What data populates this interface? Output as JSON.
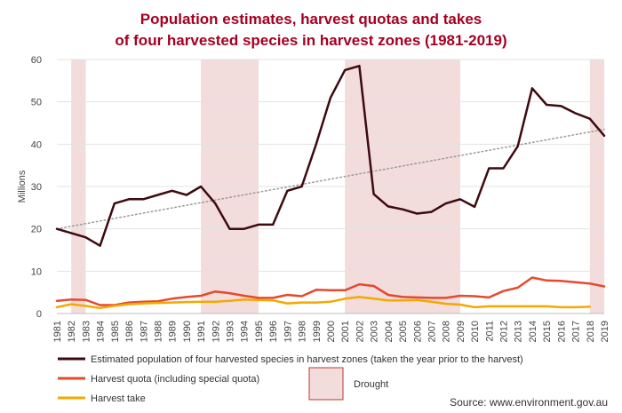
{
  "chart_data": {
    "type": "line",
    "title_line1": "Population estimates, harvest quotas and takes",
    "title_line2": "of four harvested species in harvest zones (1981-2019)",
    "ylabel": "Millions",
    "ylim": [
      0,
      60
    ],
    "yticks": [
      0,
      10,
      20,
      30,
      40,
      50,
      60
    ],
    "x": [
      1981,
      1982,
      1983,
      1984,
      1985,
      1986,
      1987,
      1988,
      1989,
      1990,
      1991,
      1992,
      1993,
      1994,
      1995,
      1996,
      1997,
      1998,
      1999,
      2000,
      2001,
      2002,
      2003,
      2004,
      2005,
      2006,
      2007,
      2008,
      2009,
      2010,
      2011,
      2012,
      2013,
      2014,
      2015,
      2016,
      2017,
      2018,
      2019
    ],
    "x_labels": [
      "1981",
      "1982",
      "1983",
      "1984",
      "1985",
      "1986",
      "1987",
      "1988",
      "1989",
      "1990",
      "1991",
      "1992",
      "1993",
      "1994",
      "1995",
      "1996",
      "1997",
      "1998",
      "1999",
      "2000",
      "2001",
      "2002",
      "2003",
      "2004",
      "2005",
      "2006",
      "2007",
      "2008",
      "2009",
      "2010",
      "2011",
      "2012",
      "2013",
      "2014",
      "2015",
      "2016",
      "2017",
      "2018",
      "2019"
    ],
    "series": [
      {
        "name": "Estimated population of four harvested species in harvest zones (taken the year prior to the harvest)",
        "color": "#3d0a0f",
        "values": [
          20,
          19,
          18,
          16,
          26,
          27,
          27,
          28,
          29,
          28,
          30,
          26,
          20,
          20,
          21,
          21,
          29,
          30,
          40,
          51,
          57.5,
          58.5,
          28.2,
          25.3,
          24.6,
          23.6,
          24,
          26,
          27,
          25.2,
          34.3,
          34.3,
          39.5,
          53.2,
          49.3,
          49,
          47.3,
          46,
          42
        ]
      },
      {
        "name": "Harvest quota (including special quota)",
        "color": "#e6492d",
        "values": [
          3,
          3.3,
          3.2,
          2,
          2,
          2.6,
          2.8,
          2.9,
          3.5,
          3.9,
          4.2,
          5.2,
          4.8,
          4.2,
          3.7,
          3.7,
          4.4,
          4.1,
          5.6,
          5.5,
          5.5,
          6.9,
          6.5,
          4.4,
          3.9,
          3.8,
          3.7,
          3.7,
          4.2,
          4.1,
          3.8,
          5.3,
          6.1,
          8.5,
          7.8,
          7.7,
          7.4,
          7.1,
          6.4
        ]
      },
      {
        "name": "Harvest take",
        "color": "#f5a800",
        "values": [
          1.5,
          2.2,
          1.8,
          1.3,
          1.8,
          2.2,
          2.4,
          2.5,
          2.6,
          2.7,
          2.8,
          2.8,
          3,
          3.3,
          3.2,
          3.1,
          2.4,
          2.6,
          2.6,
          2.8,
          3.5,
          3.9,
          3.5,
          3.1,
          3.1,
          3.2,
          2.8,
          2.3,
          2.1,
          1.5,
          1.7,
          1.7,
          1.7,
          1.7,
          1.7,
          1.5,
          1.5,
          1.6,
          null
        ]
      }
    ],
    "trendline": {
      "style": "dotted",
      "color": "#999999",
      "from": [
        1981,
        20
      ],
      "to": [
        2019,
        43.5
      ]
    },
    "drought_periods": [
      [
        1982,
        1983
      ],
      [
        1991,
        1995
      ],
      [
        2001,
        2009
      ],
      [
        2018,
        2019
      ]
    ],
    "drought_label": "Drought",
    "drought_color": "#f2dcdc",
    "legend_position": "bottom",
    "source": "Source: www.environment.gov.au"
  }
}
